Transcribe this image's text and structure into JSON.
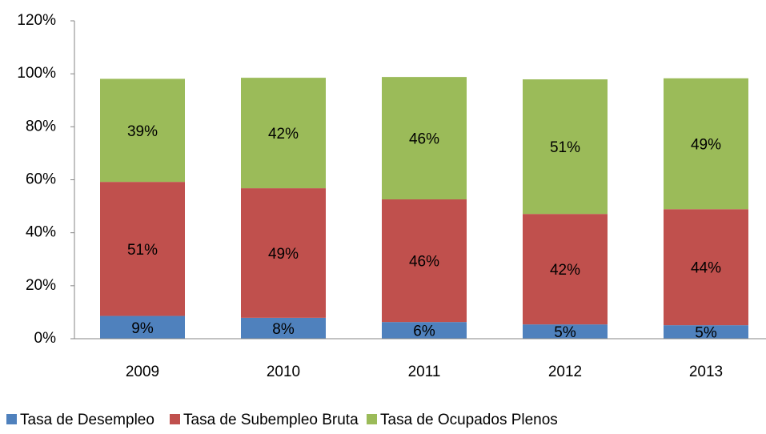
{
  "chart_data": {
    "type": "stacked_bar",
    "categories": [
      "2009",
      "2010",
      "2011",
      "2012",
      "2013"
    ],
    "series": [
      {
        "name": "Tasa de Desempleo",
        "color": "#4f81bd",
        "values": [
          8.6,
          7.9,
          6.3,
          5.4,
          5.1
        ],
        "value_labels": [
          "9%",
          "8%",
          "6%",
          "5%",
          "5%"
        ]
      },
      {
        "name": "Tasa de Subempleo Bruta",
        "color": "#c0504d",
        "values": [
          50.6,
          48.9,
          46.3,
          41.7,
          43.8
        ],
        "value_labels": [
          "51%",
          "49%",
          "46%",
          "42%",
          "44%"
        ]
      },
      {
        "name": "Tasa de Ocupados Plenos",
        "color": "#9bbb59",
        "values": [
          38.9,
          41.7,
          46.2,
          50.8,
          49.4
        ],
        "value_labels": [
          "39%",
          "42%",
          "46%",
          "51%",
          "49%"
        ]
      }
    ],
    "ylim": [
      0,
      120
    ],
    "yticks": [
      {
        "value": 0,
        "label": "0%"
      },
      {
        "value": 20,
        "label": "20%"
      },
      {
        "value": 40,
        "label": "40%"
      },
      {
        "value": 60,
        "label": "60%"
      },
      {
        "value": 80,
        "label": "80%"
      },
      {
        "value": 100,
        "label": "100%"
      },
      {
        "value": 120,
        "label": "120%"
      }
    ],
    "grid": false,
    "legend": "bottom"
  }
}
